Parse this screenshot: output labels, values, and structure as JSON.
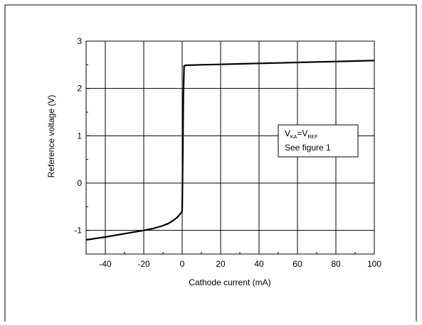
{
  "chart_data": {
    "type": "line",
    "xlabel": "Cathode current (mA)",
    "ylabel": "Reference voltage (V)",
    "xlim": [
      -50,
      100
    ],
    "ylim": [
      -1.5,
      3
    ],
    "xticks": [
      -40,
      -20,
      0,
      20,
      40,
      60,
      80,
      100
    ],
    "yticks": [
      -1,
      0,
      1,
      2,
      3
    ],
    "grid": true,
    "series": [
      {
        "x": [
          -50,
          -40,
          -30,
          -20,
          -15,
          -10,
          -7,
          -5,
          -3,
          -2,
          -1,
          0,
          0.3,
          0.6,
          1,
          2,
          10,
          20,
          30,
          40,
          50,
          60,
          70,
          80,
          90,
          100
        ],
        "y": [
          -1.2,
          -1.14,
          -1.07,
          -1.0,
          -0.96,
          -0.9,
          -0.85,
          -0.8,
          -0.74,
          -0.7,
          -0.65,
          -0.6,
          0.5,
          1.8,
          2.48,
          2.49,
          2.5,
          2.51,
          2.52,
          2.53,
          2.54,
          2.55,
          2.56,
          2.57,
          2.58,
          2.59
        ]
      }
    ],
    "annotation": {
      "line1": {
        "V": "V",
        "sub1": "KA",
        "eq": "=V",
        "sub2": "REF"
      },
      "line2": "See figure 1"
    }
  }
}
